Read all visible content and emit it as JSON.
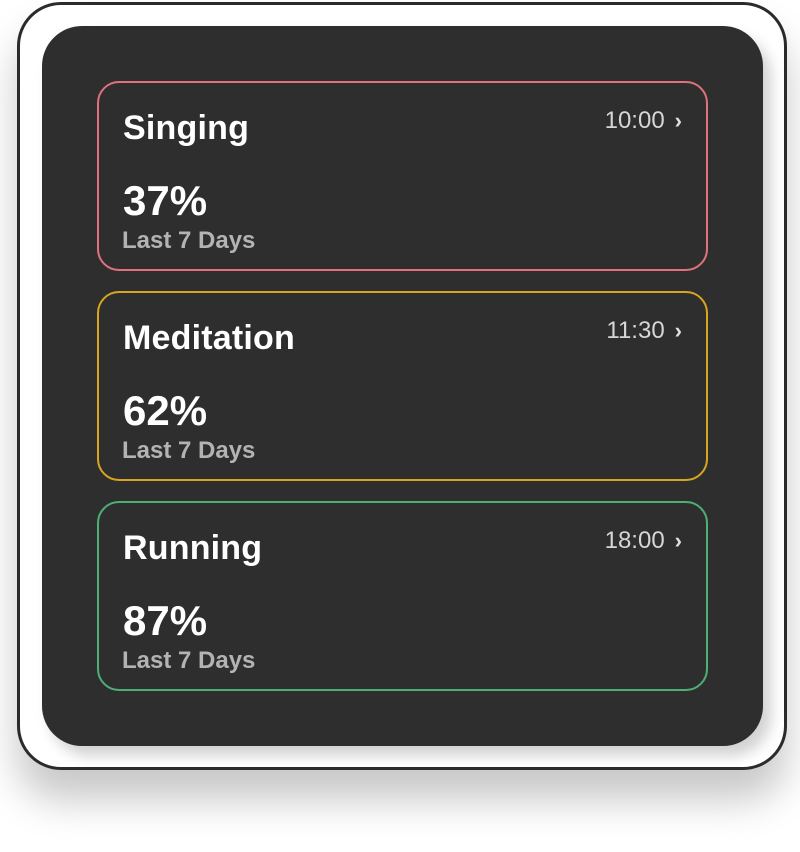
{
  "cards": [
    {
      "title": "Singing",
      "time": "10:00",
      "percent": "37%",
      "period": "Last 7 Days",
      "border_color": "#e0727a",
      "icon": "chevron-right-icon"
    },
    {
      "title": "Meditation",
      "time": "11:30",
      "percent": "62%",
      "period": "Last 7 Days",
      "border_color": "#d9a521",
      "icon": "chevron-right-icon"
    },
    {
      "title": "Running",
      "time": "18:00",
      "percent": "87%",
      "period": "Last 7 Days",
      "border_color": "#4caf78",
      "icon": "chevron-right-icon"
    }
  ],
  "chevron_glyph": "›"
}
